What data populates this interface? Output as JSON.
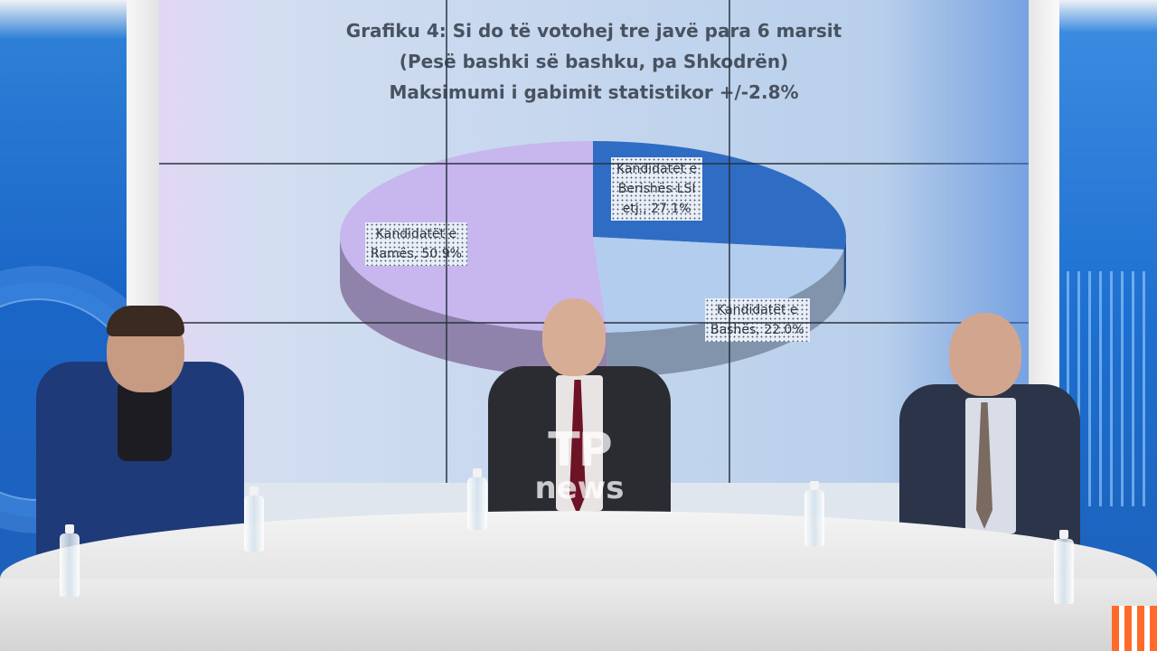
{
  "chart_data": {
    "type": "pie",
    "title_lines": [
      "Grafiku 4: Si do të votohej tre javë para 6 marsit",
      "(Pesë bashki së bashku, pa Shkodrën)",
      "Maksimumi i gabimit statistikor +/-2.8%"
    ],
    "slices": [
      {
        "label_lines": [
          "Kandidatët e",
          "Berishës-LSI",
          "etj., 27.1%"
        ],
        "value": 27.1,
        "color": "#2f6cc4"
      },
      {
        "label_lines": [
          "Kandidatët e",
          "Bashës, 22.0%"
        ],
        "value": 22.0,
        "color": "#b3cdee"
      },
      {
        "label_lines": [
          "Kandidatët e",
          "Ramës, 50.9%"
        ],
        "value": 50.9,
        "color": "#c8b6ee"
      }
    ],
    "start_angle_deg": 0,
    "style": "3d"
  },
  "watermark": {
    "line1": "TP",
    "line2": "news"
  }
}
